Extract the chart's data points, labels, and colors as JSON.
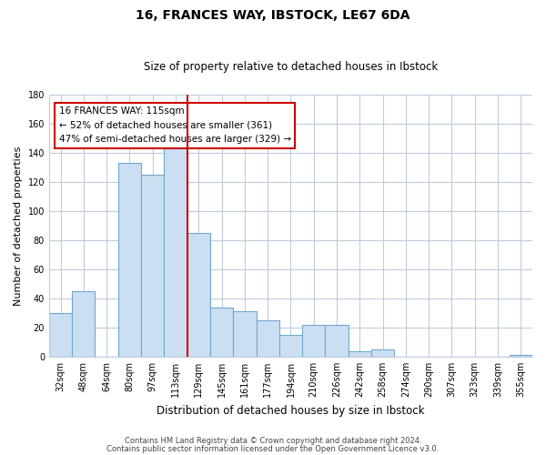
{
  "title": "16, FRANCES WAY, IBSTOCK, LE67 6DA",
  "subtitle": "Size of property relative to detached houses in Ibstock",
  "xlabel": "Distribution of detached houses by size in Ibstock",
  "ylabel": "Number of detached properties",
  "bar_labels": [
    "32sqm",
    "48sqm",
    "64sqm",
    "80sqm",
    "97sqm",
    "113sqm",
    "129sqm",
    "145sqm",
    "161sqm",
    "177sqm",
    "194sqm",
    "210sqm",
    "226sqm",
    "242sqm",
    "258sqm",
    "274sqm",
    "290sqm",
    "307sqm",
    "323sqm",
    "339sqm",
    "355sqm"
  ],
  "bar_values": [
    30,
    45,
    0,
    133,
    125,
    148,
    85,
    34,
    31,
    25,
    15,
    22,
    22,
    4,
    5,
    0,
    0,
    0,
    0,
    0,
    1
  ],
  "bar_color": "#ccdff2",
  "bar_edge_color": "#6fa8d0",
  "vline_x": 5.5,
  "vline_color": "#cc0000",
  "ylim": [
    0,
    180
  ],
  "yticks": [
    0,
    20,
    40,
    60,
    80,
    100,
    120,
    140,
    160,
    180
  ],
  "annotation_title": "16 FRANCES WAY: 115sqm",
  "annotation_line1": "← 52% of detached houses are smaller (361)",
  "annotation_line2": "47% of semi-detached houses are larger (329) →",
  "footer1": "Contains HM Land Registry data © Crown copyright and database right 2024.",
  "footer2": "Contains public sector information licensed under the Open Government Licence v3.0.",
  "bg_color": "#ffffff",
  "grid_color": "#c0ccdc",
  "title_fontsize": 10,
  "subtitle_fontsize": 8.5
}
